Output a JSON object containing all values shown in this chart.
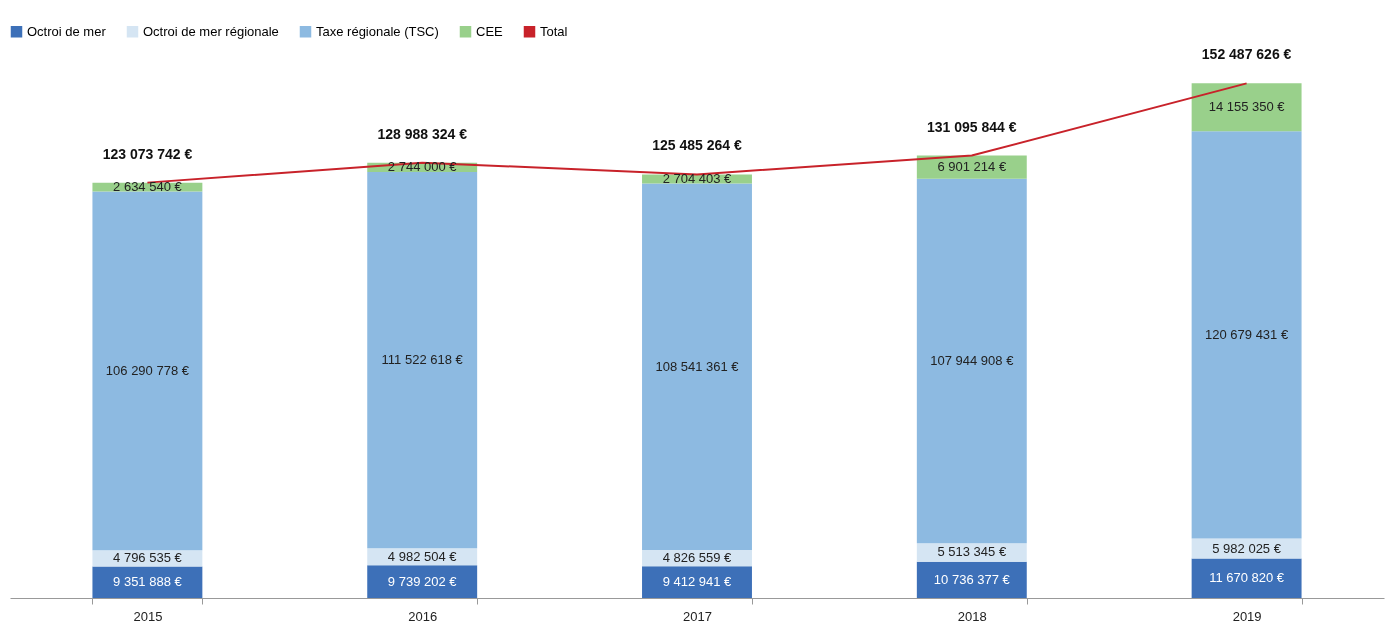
{
  "chart_data": {
    "type": "bar",
    "stacked": true,
    "categories": [
      "2015",
      "2016",
      "2017",
      "2018",
      "2019"
    ],
    "series": [
      {
        "name": "Octroi de mer",
        "color": "#3d70b8",
        "values": [
          9351888,
          9739202,
          9412941,
          10736377,
          11670820
        ],
        "value_labels": [
          "9 351 888 €",
          "9 739 202 €",
          "9 412 941 €",
          "10 736 377 €",
          "11 670 820 €"
        ]
      },
      {
        "name": "Octroi de mer régionale",
        "color": "#d5e5f3",
        "values": [
          4796535,
          4982504,
          4826559,
          5513345,
          5982025
        ],
        "value_labels": [
          "4 796 535 €",
          "4 982 504 €",
          "4 826 559 €",
          "5 513 345 €",
          "5 982 025 €"
        ]
      },
      {
        "name": "Taxe régionale (TSC)",
        "color": "#8dbae1",
        "values": [
          106290778,
          111522618,
          108541361,
          107944908,
          120679431
        ],
        "value_labels": [
          "106 290 778 €",
          "111 522 618 €",
          "108 541 361 €",
          "107 944 908 €",
          "120 679 431 €"
        ]
      },
      {
        "name": "CEE",
        "color": "#99d08b",
        "values": [
          2634540,
          2744000,
          2704403,
          6901214,
          14155350
        ],
        "value_labels": [
          "2 634 540 €",
          "2 744 000 €",
          "2 704 403 €",
          "6 901 214 €",
          "14 155 350 €"
        ]
      },
      {
        "name": "Total",
        "type": "line",
        "color": "#c8222a",
        "values": [
          123073742,
          128988324,
          125485264,
          131095844,
          152487626
        ]
      }
    ],
    "totals": [
      "123 073 742 €",
      "128 988 324 €",
      "125 485 264 €",
      "131 095 844 €",
      "152 487 626 €"
    ],
    "tick_labels": "x",
    "grid": false,
    "legend": "top",
    "marker": "none",
    "line_style": "solid"
  }
}
